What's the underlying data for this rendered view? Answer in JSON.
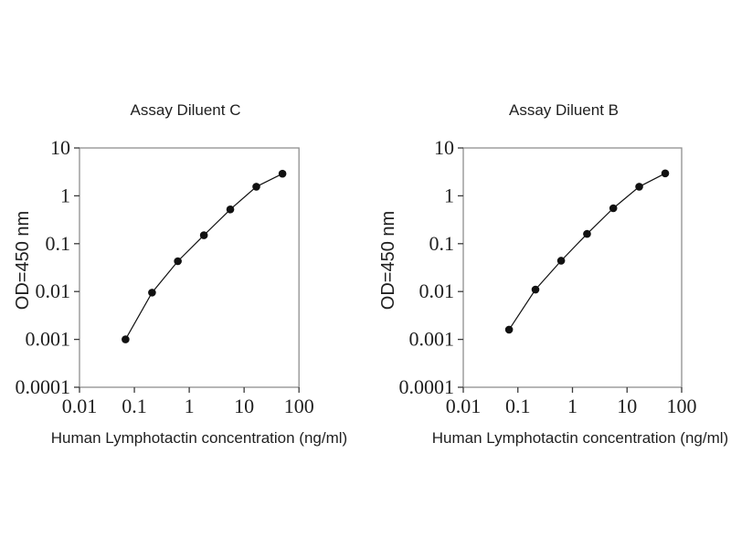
{
  "figure": {
    "background": "#ffffff",
    "text_color": "#1f1f1f",
    "frame_color": "#8f8f8f",
    "tick_color": "#3a3a3a",
    "series_color": "#111111"
  },
  "chart_data": [
    {
      "type": "line",
      "markers": true,
      "title": "Assay Diluent C",
      "xlabel": "Human Lymphotactin concentration (ng/ml)",
      "ylabel": "OD=450 nm",
      "x_scale": "log",
      "y_scale": "log",
      "xlim": [
        0.01,
        100
      ],
      "ylim": [
        0.0001,
        10
      ],
      "x_ticks": [
        "0.01",
        "0.1",
        "1",
        "10",
        "100"
      ],
      "y_ticks": [
        "10",
        "1",
        "0.1",
        "0.01",
        "0.001",
        "0.0001"
      ],
      "grid": false,
      "legend": "none",
      "x": [
        0.069,
        0.21,
        0.62,
        1.85,
        5.6,
        16.7,
        50
      ],
      "y": [
        0.001,
        0.0095,
        0.043,
        0.15,
        0.52,
        1.55,
        2.9
      ]
    },
    {
      "type": "line",
      "markers": true,
      "title": "Assay Diluent B",
      "xlabel": "Human Lymphotactin concentration (ng/ml)",
      "ylabel": "OD=450 nm",
      "x_scale": "log",
      "y_scale": "log",
      "xlim": [
        0.01,
        100
      ],
      "ylim": [
        0.0001,
        10
      ],
      "x_ticks": [
        "0.01",
        "0.1",
        "1",
        "10",
        "100"
      ],
      "y_ticks": [
        "10",
        "1",
        "0.1",
        "0.01",
        "0.001",
        "0.0001"
      ],
      "grid": false,
      "legend": "none",
      "x": [
        0.069,
        0.21,
        0.62,
        1.85,
        5.6,
        16.7,
        50
      ],
      "y": [
        0.0016,
        0.011,
        0.044,
        0.16,
        0.55,
        1.55,
        2.95
      ]
    }
  ]
}
